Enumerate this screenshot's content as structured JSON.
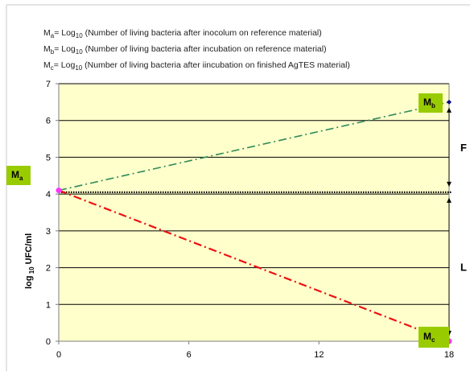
{
  "chart_data": {
    "type": "line",
    "legend": [
      {
        "sym": "M",
        "sub": "a",
        "text": "= Log",
        "sub2": "10",
        "rest": " (Number of living bacteria after inocolum on reference material)"
      },
      {
        "sym": "M",
        "sub": "b",
        "text": "= Log",
        "sub2": "10",
        "rest": " (Number of living bacteria after incubation on reference material)"
      },
      {
        "sym": "M",
        "sub": "c",
        "text": "= Log",
        "sub2": "10",
        "rest": " (Number of living bacteria after iincubation on finished AgTES material)"
      }
    ],
    "ylabel": {
      "pre": "log",
      "sub": "10",
      "post": " UFC/ml"
    },
    "xlabel": "",
    "xlim": [
      0,
      18
    ],
    "ylim": [
      0,
      7
    ],
    "x_ticks": [
      "0",
      "6",
      "12",
      "18"
    ],
    "y_ticks": [
      "0",
      "1",
      "2",
      "3",
      "4",
      "5",
      "6",
      "7"
    ],
    "grid": true,
    "reference_level": 4.05,
    "series": [
      {
        "key": "b",
        "color": "#2e8b57",
        "x": [
          0,
          18
        ],
        "y": [
          4.1,
          6.5
        ]
      },
      {
        "key": "c",
        "color": "#ee1111",
        "x": [
          0,
          18
        ],
        "y": [
          4.1,
          0.0
        ]
      }
    ],
    "points": [
      {
        "key": "a",
        "x": 0,
        "y": 4.1,
        "color": "#ff33ff"
      },
      {
        "key": "b",
        "x": 18,
        "y": 6.5,
        "color": "#000080"
      },
      {
        "key": "c",
        "x": 18,
        "y": 0.0,
        "color": "#ff33ff"
      }
    ],
    "point_labels": [
      {
        "key": "a",
        "main": "M",
        "sub": "a",
        "bg": "#99cc00"
      },
      {
        "key": "b",
        "main": "M",
        "sub": "b",
        "bg": "#99cc00"
      },
      {
        "key": "c",
        "main": "M",
        "sub": "c",
        "bg": "#99cc00"
      }
    ],
    "arrows": [
      {
        "key": "F",
        "label": "F",
        "x": 18,
        "y_from": 6.5,
        "y_to": 4.05
      },
      {
        "key": "L",
        "label": "L",
        "x": 18,
        "y_from": 4.05,
        "y_to": 0.0
      }
    ]
  }
}
